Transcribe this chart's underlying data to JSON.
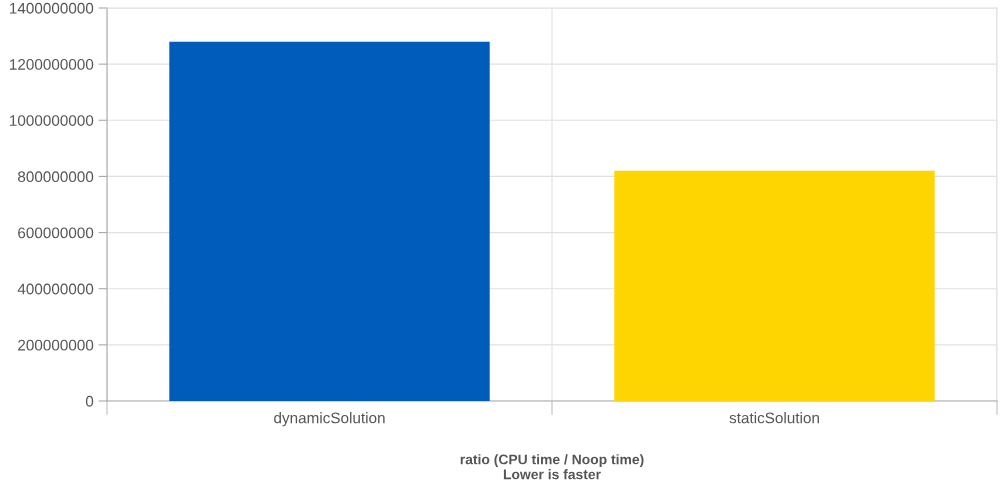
{
  "chart_data": {
    "type": "bar",
    "xlabel": "ratio (CPU time / Noop time)\nLower is faster",
    "categories": [
      "dynamicSolution",
      "staticSolution"
    ],
    "values": [
      1280000000,
      820000000
    ],
    "colors": [
      "#005cbb",
      "#fed500"
    ],
    "ylim": [
      0,
      1400000000
    ],
    "yticks": [
      0,
      200000000,
      400000000,
      600000000,
      800000000,
      1000000000,
      1200000000,
      1400000000
    ],
    "grid": true,
    "legend": false
  }
}
